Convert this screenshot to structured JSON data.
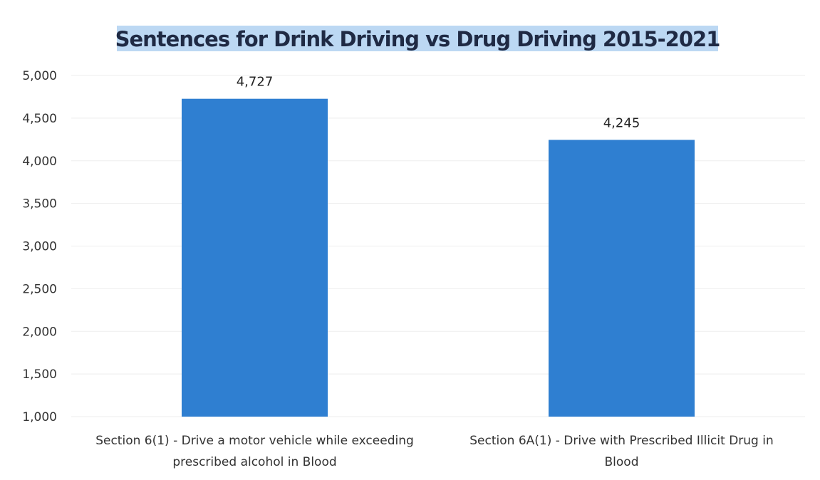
{
  "chart_data": {
    "type": "bar",
    "title": "Sentences for Drink Driving vs Drug Driving 2015-2021",
    "xlabel": "",
    "ylabel": "",
    "ylim": [
      1000,
      5000
    ],
    "yticks": [
      1000,
      1500,
      2000,
      2500,
      3000,
      3500,
      4000,
      4500,
      5000
    ],
    "ytick_labels": [
      "1,000",
      "1,500",
      "2,000",
      "2,500",
      "3,000",
      "3,500",
      "4,000",
      "4,500",
      "5,000"
    ],
    "grid": false,
    "legend": "none",
    "bar_color": "#2f7fd1",
    "title_highlight_color": "#bcd8f3",
    "categories": [
      [
        "Section 6(1) - Drive a motor vehicle while exceeding",
        "prescribed alcohol in Blood"
      ],
      [
        "Section 6A(1) - Drive with Prescribed Illicit Drug in",
        "Blood"
      ]
    ],
    "values": [
      4727,
      4245
    ],
    "data_labels": [
      "4,727",
      "4,245"
    ]
  }
}
